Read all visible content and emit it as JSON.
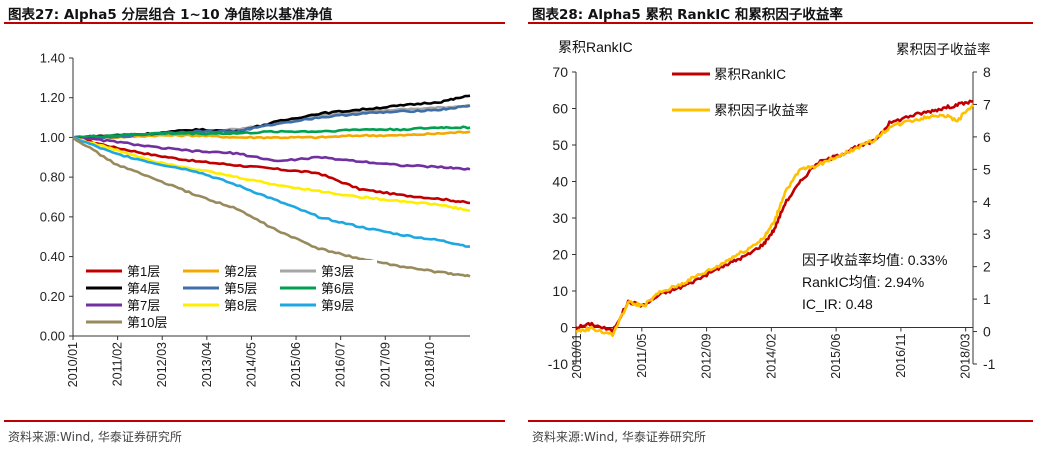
{
  "left": {
    "title": "图表27:   Alpha5 分层组合 1~10 净值除以基准净值",
    "source": "资料来源:Wind, 华泰证券研究所",
    "chart_data": {
      "type": "line",
      "title": "Alpha5 分层组合 1~10 净值除以基准净值",
      "ylim": [
        0,
        1.4
      ],
      "yticks": [
        "1.40",
        "1.20",
        "1.00",
        "0.80",
        "0.60",
        "0.40",
        "0.20",
        "0.00"
      ],
      "xticks": [
        "2010/01",
        "2011/02",
        "2012/03",
        "2013/04",
        "2014/05",
        "2015/06",
        "2016/07",
        "2017/09",
        "2018/10"
      ],
      "legend_position": "bottom-left",
      "series": [
        {
          "name": "第1层",
          "color": "#c00000",
          "x": [
            0,
            1,
            2,
            3,
            4,
            5,
            6,
            7,
            8,
            9,
            9.7
          ],
          "values": [
            1.0,
            0.95,
            0.91,
            0.88,
            0.86,
            0.84,
            0.82,
            0.74,
            0.71,
            0.69,
            0.67
          ]
        },
        {
          "name": "第2层",
          "color": "#f5a800",
          "x": [
            0,
            1,
            2,
            3,
            4,
            5,
            6,
            7,
            8,
            9,
            9.7
          ],
          "values": [
            1.0,
            1.0,
            1.01,
            1.01,
            1.0,
            1.0,
            1.0,
            1.01,
            1.01,
            1.02,
            1.03
          ]
        },
        {
          "name": "第3层",
          "color": "#a6a6a6",
          "x": [
            0,
            1,
            2,
            3,
            4,
            5,
            6,
            7,
            8,
            9,
            9.7
          ],
          "values": [
            1.0,
            1.01,
            1.02,
            1.03,
            1.04,
            1.07,
            1.11,
            1.13,
            1.14,
            1.15,
            1.16
          ]
        },
        {
          "name": "第4层",
          "color": "#000000",
          "x": [
            0,
            1,
            2,
            3,
            4,
            5,
            6,
            7,
            8,
            9,
            9.7
          ],
          "values": [
            1.0,
            1.01,
            1.02,
            1.04,
            1.03,
            1.08,
            1.12,
            1.14,
            1.16,
            1.18,
            1.21
          ]
        },
        {
          "name": "第5层",
          "color": "#3f6fa8",
          "x": [
            0,
            1,
            2,
            3,
            4,
            5,
            6,
            7,
            8,
            9,
            9.7
          ],
          "values": [
            1.0,
            1.0,
            1.02,
            1.03,
            1.03,
            1.07,
            1.1,
            1.12,
            1.13,
            1.14,
            1.16
          ]
        },
        {
          "name": "第6层",
          "color": "#00a050",
          "x": [
            0,
            1,
            2,
            3,
            4,
            5,
            6,
            7,
            8,
            9,
            9.7
          ],
          "values": [
            1.0,
            1.01,
            1.02,
            1.02,
            1.02,
            1.03,
            1.03,
            1.04,
            1.04,
            1.05,
            1.05
          ]
        },
        {
          "name": "第7层",
          "color": "#7030a0",
          "x": [
            0,
            1,
            2,
            3,
            4,
            5,
            6,
            7,
            8,
            9,
            9.7
          ],
          "values": [
            1.0,
            0.98,
            0.95,
            0.93,
            0.92,
            0.88,
            0.9,
            0.88,
            0.86,
            0.85,
            0.84
          ]
        },
        {
          "name": "第8层",
          "color": "#ffee00",
          "x": [
            0,
            1,
            2,
            3,
            4,
            5,
            6,
            7,
            8,
            9,
            9.7
          ],
          "values": [
            1.0,
            0.94,
            0.88,
            0.84,
            0.8,
            0.76,
            0.73,
            0.7,
            0.68,
            0.66,
            0.63
          ]
        },
        {
          "name": "第9层",
          "color": "#1ea7e0",
          "x": [
            0,
            1,
            2,
            3,
            4,
            5,
            6,
            7,
            8,
            9,
            9.7
          ],
          "values": [
            1.0,
            0.92,
            0.87,
            0.83,
            0.76,
            0.68,
            0.6,
            0.55,
            0.51,
            0.48,
            0.45
          ]
        },
        {
          "name": "第10层",
          "color": "#998a5e",
          "x": [
            0,
            1,
            2,
            3,
            4,
            5,
            6,
            7,
            8,
            9,
            9.7
          ],
          "values": [
            1.0,
            0.87,
            0.79,
            0.71,
            0.64,
            0.53,
            0.44,
            0.39,
            0.35,
            0.32,
            0.3
          ]
        }
      ]
    }
  },
  "right": {
    "title": "图表28:   Alpha5 累积 RankIC 和累积因子收益率",
    "source": "资料来源:Wind, 华泰证券研究所",
    "chart_data": {
      "type": "line",
      "title": "Alpha5 累积 RankIC 和累积因子收益率",
      "ylabel_left": "累积RankIC",
      "ylabel_right": "累积因子收益率",
      "ylim_left": [
        -10,
        70
      ],
      "ylim_right": [
        -1,
        8
      ],
      "yticks_left": [
        "70",
        "60",
        "50",
        "40",
        "30",
        "20",
        "10",
        "0",
        "-10"
      ],
      "yticks_right": [
        "8",
        "7",
        "6",
        "5",
        "4",
        "3",
        "2",
        "1",
        "0",
        "-1"
      ],
      "xticks": [
        "2010/01",
        "2011/05",
        "2012/09",
        "2014/02",
        "2015/06",
        "2016/11",
        "2018/03"
      ],
      "legend_position": "top-left",
      "series": [
        {
          "name": "累积RankIC",
          "color": "#c00000",
          "axis": "left",
          "x": [
            0,
            0.3,
            0.7,
            1.0,
            1.3,
            1.6,
            2.0,
            2.3,
            2.7,
            3.0,
            3.3,
            3.6,
            3.8,
            4.0,
            4.3,
            4.6,
            5.0,
            5.3,
            5.7,
            6.0,
            6.4,
            6.7,
            7.0,
            7.3,
            7.6
          ],
          "values": [
            0,
            1,
            -1,
            7,
            6,
            9,
            11,
            13,
            16,
            18,
            20,
            23,
            27,
            34,
            40,
            45,
            47,
            49,
            51,
            56,
            58,
            59,
            60,
            61,
            62
          ]
        },
        {
          "name": "累积因子收益率",
          "color": "#ffc000",
          "axis": "right",
          "x": [
            0,
            0.3,
            0.7,
            1.0,
            1.3,
            1.6,
            2.0,
            2.3,
            2.7,
            3.0,
            3.3,
            3.6,
            3.8,
            4.0,
            4.3,
            4.6,
            5.0,
            5.3,
            5.7,
            6.0,
            6.4,
            6.7,
            7.0,
            7.3,
            7.6
          ],
          "values": [
            0,
            0.1,
            -0.1,
            0.9,
            0.8,
            1.2,
            1.45,
            1.7,
            2.0,
            2.3,
            2.55,
            2.9,
            3.4,
            4.3,
            5.0,
            5.1,
            5.4,
            5.6,
            5.9,
            6.3,
            6.5,
            6.6,
            6.7,
            6.5,
            7.0
          ]
        }
      ],
      "annotations": [
        "因子收益率均值: 0.33%",
        "RankIC均值: 2.94%",
        "IC_IR: 0.48"
      ]
    }
  }
}
